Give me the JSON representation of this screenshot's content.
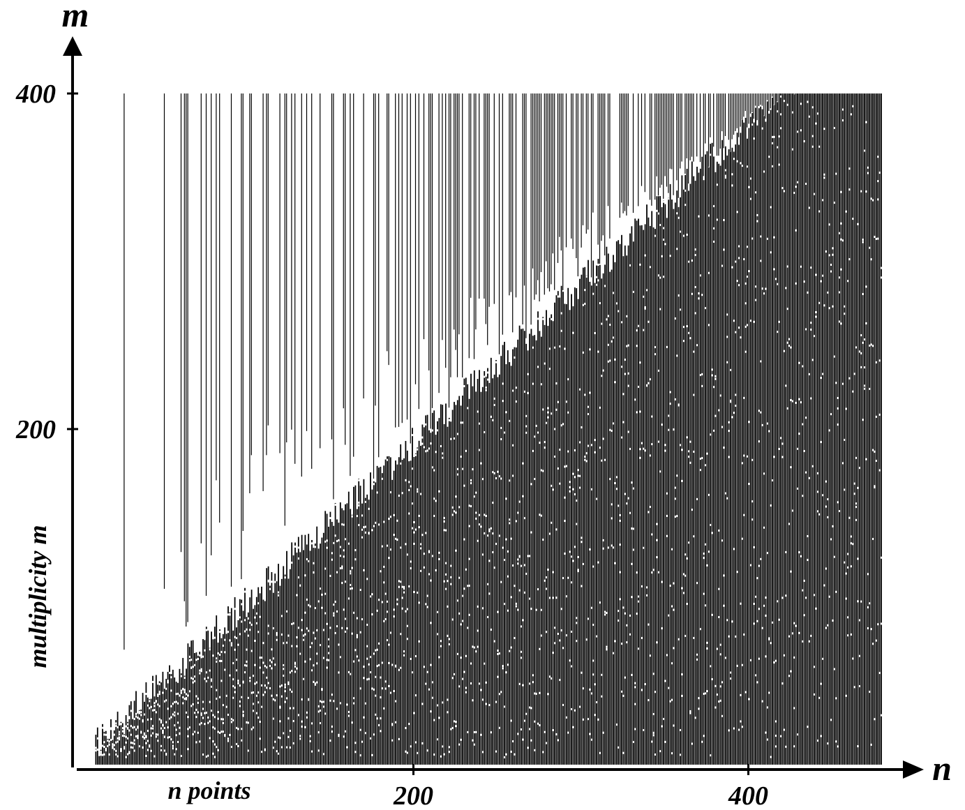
{
  "chart_data": {
    "type": "raster",
    "x_label": "n points",
    "y_label": "multiplicity m",
    "x_axis_name": "n",
    "y_axis_name": "m",
    "xlim": [
      0,
      480
    ],
    "ylim": [
      0,
      400
    ],
    "xticks": [
      200,
      400
    ],
    "yticks": [
      200,
      400
    ],
    "color": "#000000"
  }
}
